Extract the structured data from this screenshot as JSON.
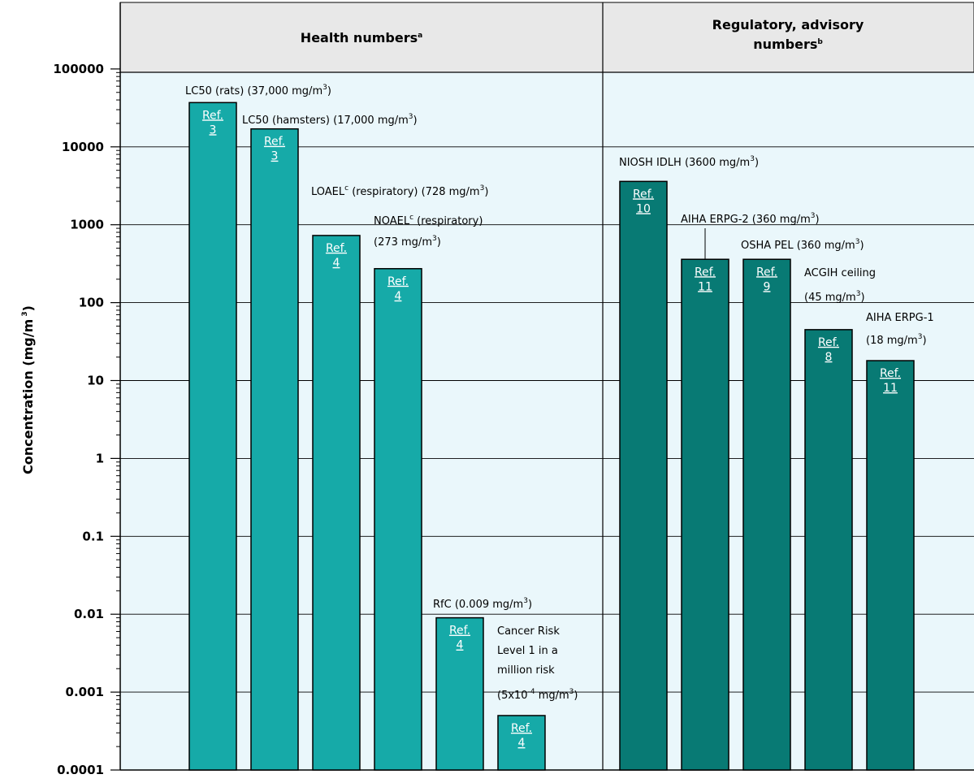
{
  "chart_data": {
    "type": "bar",
    "yscale": "log",
    "ylim": [
      0.0001,
      100000
    ],
    "ylabel": "Concentration (mg/m",
    "ylabel_sup": "3",
    "ylabel_close": ")",
    "yticks": [
      "100000",
      "10000",
      "1000",
      "100",
      "10",
      "1",
      "0.1",
      "0.01",
      "0.001",
      "0.0001"
    ],
    "groups": [
      {
        "title": "Health numbers",
        "sup": "a"
      },
      {
        "title": "Regulatory, advisory",
        "title2": "numbers",
        "sup": "b"
      }
    ],
    "colors": {
      "health": "#16aaa8",
      "regulatory": "#087a74",
      "panel_bg": "#eaf7fb",
      "header_bg": "#e8e8e8"
    },
    "bars": [
      {
        "group": 0,
        "value": 37000,
        "ref": "Ref.",
        "ref_num": "3",
        "label": [
          "LC50 (rats) (37,000 mg/m",
          "3",
          ")"
        ]
      },
      {
        "group": 0,
        "value": 17000,
        "ref": "Ref.",
        "ref_num": "3",
        "label": [
          "LC50 (hamsters) (17,000 mg/m",
          "3",
          ")"
        ]
      },
      {
        "group": 0,
        "value": 728,
        "ref": "Ref.",
        "ref_num": "4",
        "label": [
          "LOAEL",
          "c",
          " (respiratory) (728 mg/m",
          "3",
          ")"
        ]
      },
      {
        "group": 0,
        "value": 273,
        "ref": "Ref.",
        "ref_num": "4",
        "label": [
          "NOAEL",
          "c",
          " (respiratory)"
        ],
        "label2": [
          "(273 mg/m",
          "3",
          ")"
        ]
      },
      {
        "group": 0,
        "value": 0.009,
        "ref": "Ref.",
        "ref_num": "4",
        "label": [
          "RfC (0.009 mg/m",
          "3",
          ")"
        ]
      },
      {
        "group": 0,
        "value": 0.0005,
        "ref": "Ref.",
        "ref_num": "4",
        "label_lines": [
          "Cancer Risk",
          "Level 1 in a",
          "million risk"
        ],
        "label_last": [
          "(5x10",
          "-4",
          " mg/m",
          "3",
          ")"
        ]
      },
      {
        "group": 1,
        "value": 3600,
        "ref": "Ref.",
        "ref_num": "10",
        "label": [
          "NIOSH IDLH (3600 mg/m",
          "3",
          ")"
        ]
      },
      {
        "group": 1,
        "value": 360,
        "ref": "Ref.",
        "ref_num": "11",
        "label": [
          "AIHA ERPG-2 (360 mg/m",
          "3",
          ")"
        ]
      },
      {
        "group": 1,
        "value": 360,
        "ref": "Ref.",
        "ref_num": "9",
        "label": [
          "OSHA PEL (360 mg/m",
          "3",
          ")"
        ]
      },
      {
        "group": 1,
        "value": 45,
        "ref": "Ref.",
        "ref_num": "8",
        "label": [
          "ACGIH ceiling"
        ],
        "label2": [
          "(45 mg/m",
          "3",
          ")"
        ]
      },
      {
        "group": 1,
        "value": 18,
        "ref": "Ref.",
        "ref_num": "11",
        "label": [
          "AIHA ERPG-1"
        ],
        "label2": [
          "(18 mg/m",
          "3",
          ")"
        ]
      }
    ]
  }
}
